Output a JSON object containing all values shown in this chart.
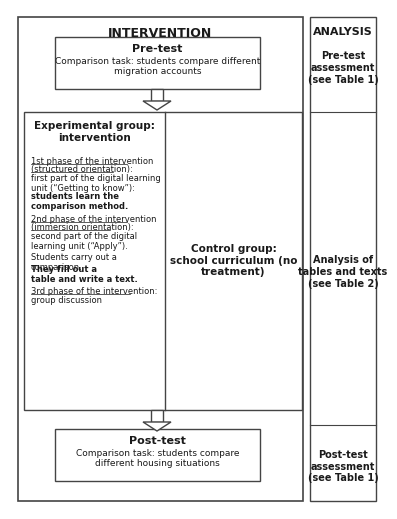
{
  "title_intervention": "INTERVENTION",
  "title_analysis": "ANALYSIS",
  "pretest_title": "Pre-test",
  "pretest_body": "Comparison task: students compare different\nmigration accounts",
  "exp_title": "Experimental group:\nintervention",
  "phase1_line1": "1st phase of the intervention",
  "phase1_line2": "(structured orientation):",
  "phase1_body": "first part of the digital learning\nunit (“Getting to know”):",
  "phase1_bold": "students learn the\ncomparison method.",
  "phase2_line1": "2nd phase of the intervention",
  "phase2_line2": "(immersion orientation):",
  "phase2_body": "second part of the digital\nlearning unit (“Apply”).\nStudents carry out a\ncomparison.",
  "phase2_bold": "They fill out a\ntable and write a text.",
  "phase3_line1": "3rd phase of the intervention:",
  "phase3_body": "group discussion",
  "control_title": "Control group:\nschool curriculum (no\ntreatment)",
  "posttest_title": "Post-test",
  "posttest_body": "Comparison task: students compare\ndifferent housing situations",
  "analysis_1": "Pre-test\nassessment\n(see Table 1)",
  "analysis_2": "Analysis of\ntables and texts\n(see Table 2)",
  "analysis_3": "Post-test\nassessment\n(see Table 1)",
  "bg_color": "#ffffff",
  "ec": "#444444",
  "tc": "#1a1a1a"
}
